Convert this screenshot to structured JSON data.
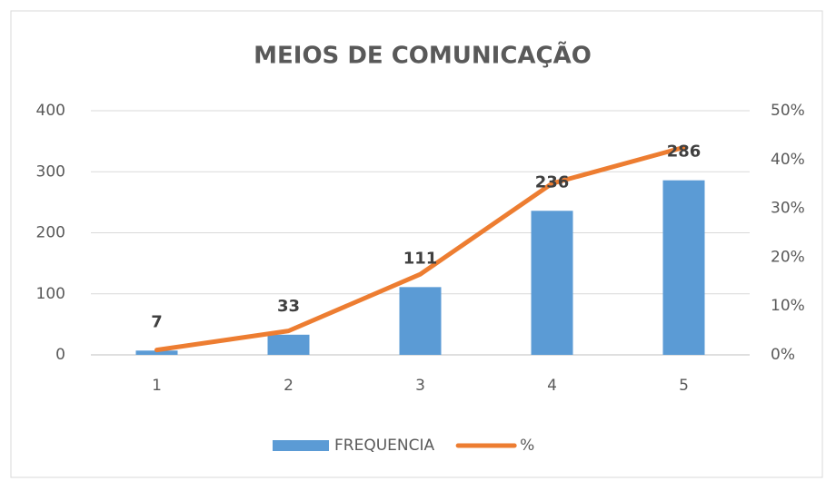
{
  "chart_data": {
    "type": "bar_line",
    "title": "MEIOS DE COMUNICAÇÃO",
    "categories": [
      "1",
      "2",
      "3",
      "4",
      "5"
    ],
    "series": [
      {
        "name": "FREQUENCIA",
        "color": "#5b9bd5",
        "type": "bar",
        "axis": "y",
        "values": [
          7,
          33,
          111,
          236,
          286
        ]
      },
      {
        "name": "%",
        "color": "#ed7d31",
        "type": "line",
        "axis": "y2",
        "values": [
          1.0,
          4.9,
          16.5,
          35.1,
          42.5
        ]
      }
    ],
    "ylim": [
      0,
      400
    ],
    "yticks": [
      0,
      100,
      200,
      300,
      400
    ],
    "y2lim": [
      0,
      50
    ],
    "y2ticks": [
      {
        "value": 0,
        "label": "0%"
      },
      {
        "value": 10,
        "label": "10%"
      },
      {
        "value": 20,
        "label": "20%"
      },
      {
        "value": 30,
        "label": "30%"
      },
      {
        "value": 40,
        "label": "40%"
      },
      {
        "value": 50,
        "label": "50%"
      }
    ],
    "grid": true,
    "legend": "bottom"
  }
}
